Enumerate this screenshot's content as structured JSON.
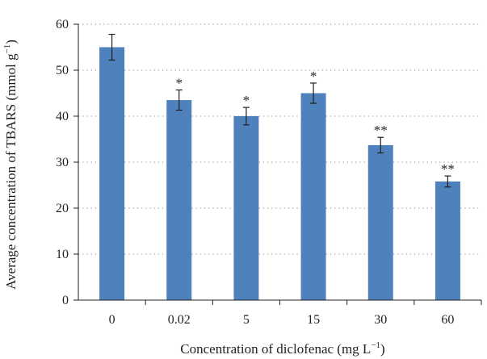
{
  "chart_data": {
    "type": "bar",
    "title": "",
    "xlabel": "Concentration of diclofenac (mg L",
    "xlabel_sup": "−1",
    "xlabel_end": ")",
    "ylabel": "Average concentration of TBARS (mmol g",
    "ylabel_sup": "−1",
    "ylabel_end": ")",
    "categories": [
      "0",
      "0.02",
      "5",
      "15",
      "30",
      "60"
    ],
    "values": [
      55.0,
      43.5,
      40.0,
      45.0,
      33.7,
      25.8
    ],
    "errors": [
      2.8,
      2.2,
      1.9,
      2.2,
      1.7,
      1.2
    ],
    "significance": [
      "",
      "*",
      "*",
      "*",
      "**",
      "**"
    ],
    "ylim": [
      0,
      60
    ],
    "yticks": [
      0,
      10,
      20,
      30,
      40,
      50,
      60
    ],
    "grid": "dotted horizontal",
    "bar_color": "#4f81bd"
  }
}
